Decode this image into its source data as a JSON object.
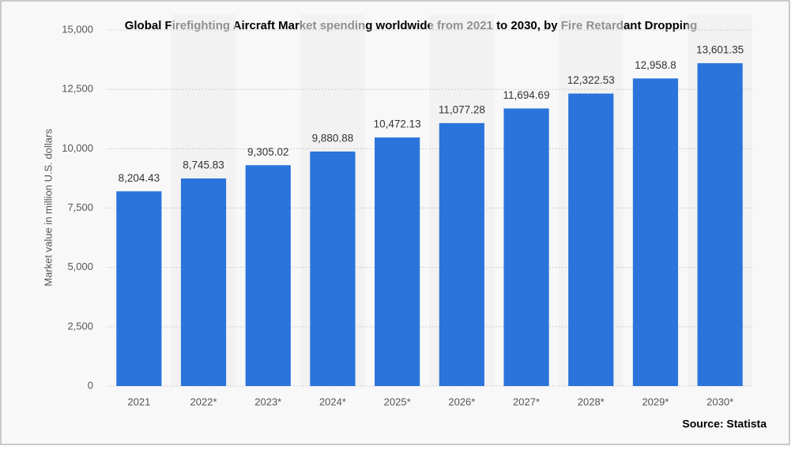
{
  "chart_data": {
    "type": "bar",
    "title": "Global Firefighting Aircraft Market spending worldwide from 2021 to 2030, by Fire Retardant Dropping",
    "y_label": "Market value in million U.S. dollars",
    "source": "Source: Statista",
    "categories": [
      "2021",
      "2022*",
      "2023*",
      "2024*",
      "2025*",
      "2026*",
      "2027*",
      "2028*",
      "2029*",
      "2030*"
    ],
    "values": [
      8204.43,
      8745.83,
      9305.02,
      9880.88,
      10472.13,
      11077.28,
      11694.69,
      12322.53,
      12958.8,
      13601.35
    ],
    "value_labels": [
      "8,204.43",
      "8,745.83",
      "9,305.02",
      "9,880.88",
      "10,472.13",
      "11,077.28",
      "11,694.69",
      "12,322.53",
      "12,958.8",
      "13,601.35"
    ],
    "color": "#2a74db",
    "ylim": [
      0,
      15000
    ],
    "yticks": [
      0,
      {
        "value": 2500,
        "label": "2,500"
      },
      {
        "value": 5000,
        "label": "5,000"
      },
      {
        "value": 7500,
        "label": "7,500"
      },
      {
        "value": 10000,
        "label": "10,000"
      },
      {
        "value": 12500,
        "label": "12,500"
      },
      {
        "value": 15000,
        "label": "15,000"
      }
    ],
    "grid": true
  }
}
